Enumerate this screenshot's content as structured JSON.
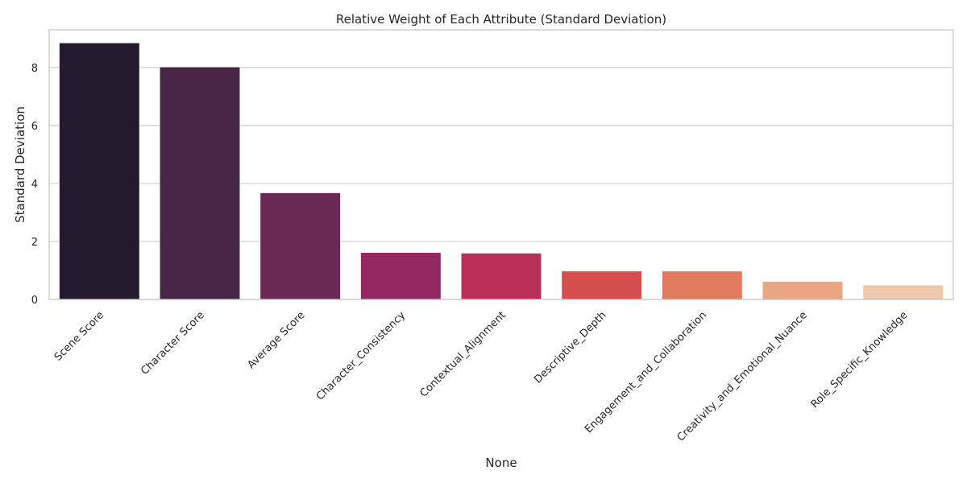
{
  "chart_data": {
    "type": "bar",
    "title": "Relative Weight of Each Attribute (Standard Deviation)",
    "xlabel": "None",
    "ylabel": "Standard Deviation",
    "categories": [
      "Scene Score",
      "Character Score",
      "Average Score",
      "Character_Consistency",
      "Contextual_Alignment",
      "Descriptive_Depth",
      "Engagement_and_Collaboration",
      "Creativity_and_Emotional_Nuance",
      "Role_Specific_Knowledge"
    ],
    "values": [
      8.85,
      8.02,
      3.68,
      1.62,
      1.6,
      0.98,
      0.98,
      0.62,
      0.5
    ],
    "colors": [
      "#25192e",
      "#472544",
      "#6a2854",
      "#942760",
      "#b92f57",
      "#d64e4d",
      "#e17a5e",
      "#e9a582",
      "#efc7ad"
    ],
    "yticks": [
      0,
      2,
      4,
      6,
      8
    ],
    "ylim": [
      0,
      9.3
    ],
    "grid": "horizontal"
  }
}
